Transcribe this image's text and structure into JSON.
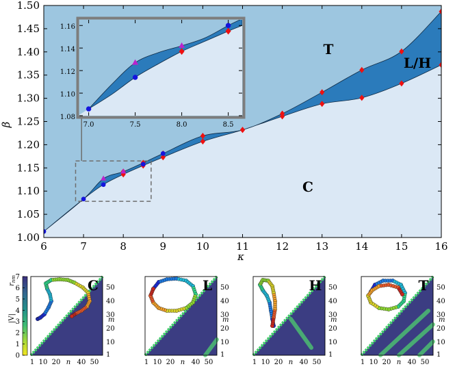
{
  "chart_data": [
    {
      "type": "area",
      "title": "",
      "xlabel": "κ",
      "ylabel": "β",
      "xlim": [
        6,
        16
      ],
      "ylim": [
        1.0,
        1.5
      ],
      "xticks": [
        "6",
        "7",
        "8",
        "9",
        "10",
        "11",
        "12",
        "13",
        "14",
        "15",
        "16"
      ],
      "yticks": [
        "1.00",
        "1.05",
        "1.10",
        "1.15",
        "1.20",
        "1.25",
        "1.30",
        "1.35",
        "1.40",
        "1.45",
        "1.50"
      ],
      "regions": [
        {
          "name": "T",
          "label": "T",
          "color": "#9dc6e0"
        },
        {
          "name": "L/H",
          "label": "L/H",
          "color": "#2b7bbb"
        },
        {
          "name": "C",
          "label": "C",
          "color": "#dbe8f5"
        }
      ],
      "series": [
        {
          "name": "upper-boundary",
          "x": [
            6,
            7,
            7.5,
            8,
            8.5,
            9,
            10,
            11,
            12,
            13,
            14,
            15,
            16
          ],
          "y": [
            1.013,
            1.083,
            1.127,
            1.142,
            1.161,
            1.181,
            1.219,
            1.232,
            1.267,
            1.313,
            1.361,
            1.401,
            1.487
          ]
        },
        {
          "name": "lower-boundary",
          "x": [
            6,
            7,
            7.5,
            8,
            8.5,
            9,
            10,
            11,
            12,
            13,
            14,
            15,
            16
          ],
          "y": [
            1.013,
            1.083,
            1.114,
            1.136,
            1.155,
            1.173,
            1.207,
            1.232,
            1.261,
            1.288,
            1.301,
            1.332,
            1.372
          ]
        },
        {
          "name": "red-diamonds",
          "marker": "diamond",
          "color": "#ee1111",
          "x": [
            8,
            8.5,
            9,
            10,
            11,
            12,
            13,
            14,
            15,
            16,
            8,
            8.5,
            9,
            10,
            11,
            12,
            13,
            14,
            15,
            16
          ],
          "y": [
            1.136,
            1.155,
            1.173,
            1.207,
            1.232,
            1.261,
            1.288,
            1.301,
            1.332,
            1.372,
            1.142,
            1.161,
            1.181,
            1.219,
            1.232,
            1.267,
            1.313,
            1.361,
            1.401,
            1.487
          ]
        },
        {
          "name": "blue-circles",
          "marker": "circle",
          "color": "#1515dd",
          "x": [
            6,
            7,
            7.5,
            8.5,
            9
          ],
          "y": [
            1.013,
            1.083,
            1.114,
            1.158,
            1.181
          ]
        },
        {
          "name": "magenta-triangles",
          "marker": "triangle",
          "color": "#bb22cc",
          "x": [
            7.5,
            8
          ],
          "y": [
            1.127,
            1.142
          ]
        }
      ]
    },
    {
      "type": "area",
      "title": "inset",
      "xlim": [
        6.9,
        8.65
      ],
      "ylim": [
        1.08,
        1.165
      ],
      "xticks": [
        "7.0",
        "7.5",
        "8.0",
        "8.5"
      ],
      "yticks": [
        "1.08",
        "1.10",
        "1.12",
        "1.14",
        "1.16"
      ],
      "series": [
        {
          "name": "upper-boundary",
          "x": [
            7.0,
            7.25,
            7.5,
            7.75,
            8.0,
            8.25,
            8.5,
            8.65
          ],
          "y": [
            1.086,
            1.108,
            1.127,
            1.136,
            1.142,
            1.149,
            1.16,
            1.166
          ]
        },
        {
          "name": "lower-boundary",
          "x": [
            7.0,
            7.25,
            7.5,
            7.75,
            8.0,
            8.25,
            8.5,
            8.65
          ],
          "y": [
            1.086,
            1.099,
            1.114,
            1.126,
            1.137,
            1.146,
            1.155,
            1.16
          ]
        },
        {
          "name": "red-diamonds",
          "marker": "diamond",
          "color": "#ee1111",
          "x": [
            8.0,
            8.5
          ],
          "y": [
            1.137,
            1.155
          ]
        },
        {
          "name": "blue-circles",
          "marker": "circle",
          "color": "#1515dd",
          "x": [
            7.0,
            7.5,
            8.5
          ],
          "y": [
            1.086,
            1.114,
            1.16
          ]
        },
        {
          "name": "magenta-triangles",
          "marker": "triangle",
          "color": "#bb22cc",
          "x": [
            7.5,
            8.0
          ],
          "y": [
            1.127,
            1.142
          ]
        }
      ]
    },
    {
      "type": "heatmap",
      "panels": [
        {
          "label": "C",
          "xlabel": "n",
          "ylabel": "m"
        },
        {
          "label": "L",
          "xlabel": "n",
          "ylabel": "m"
        },
        {
          "label": "H",
          "xlabel": "n",
          "ylabel": "m"
        },
        {
          "label": "T",
          "xlabel": "n",
          "ylabel": "m"
        }
      ],
      "xticks": [
        "1",
        "10",
        "20",
        "",
        "40",
        "50"
      ],
      "yticks": [
        "1",
        "10",
        "20",
        "30",
        "40",
        "50"
      ],
      "colorbar": {
        "label": "r_nm",
        "label_main": "r",
        "label_sub": "nm",
        "top_label": "|V|",
        "ticks": [
          "0",
          "1",
          "2",
          "3",
          "4",
          "5",
          "6",
          "7"
        ],
        "range": [
          0,
          7
        ]
      }
    }
  ],
  "regions_text": {
    "T": "T",
    "LH": "L/H",
    "C": "C"
  }
}
